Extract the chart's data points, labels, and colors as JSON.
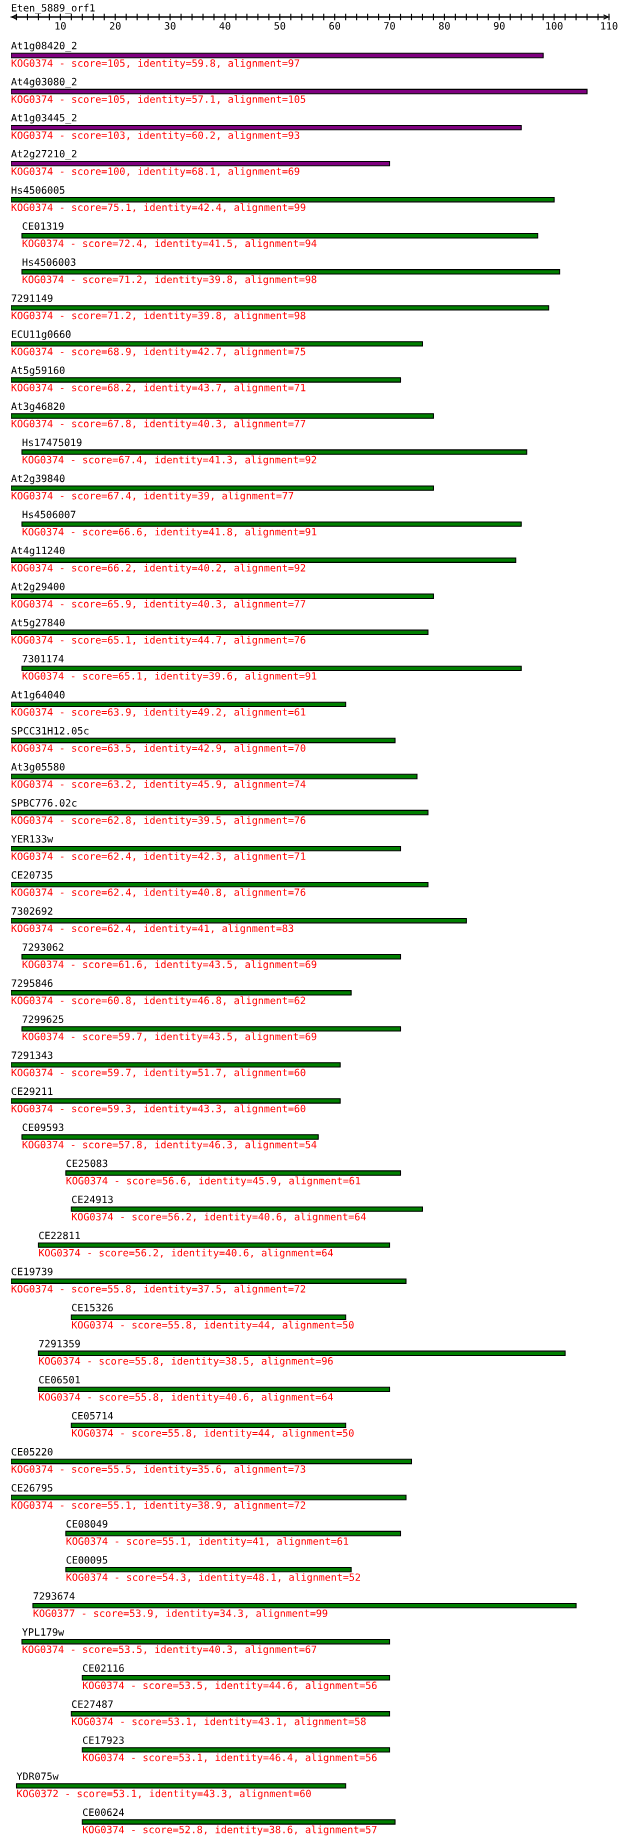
{
  "chart_data": {
    "type": "bar",
    "orientation": "horizontal",
    "title": "Eten_5889_orf1",
    "categories": [
      "At1g08420_2",
      "At4g03080_2",
      "At1g03445_2",
      "At2g27210_2",
      "Hs4506005",
      "CE01319",
      "Hs4506003",
      "7291149",
      "ECU11g0660",
      "At5g59160",
      "At3g46820",
      "Hs17475019",
      "At2g39840",
      "Hs4506007",
      "At4g11240",
      "At2g29400",
      "At5g27840",
      "7301174",
      "At1g64040",
      "SPCC31H12.05c",
      "At3g05580",
      "SPBC776.02c",
      "YER133w",
      "CE20735",
      "7302692",
      "7293062",
      "7295846",
      "7299625",
      "7291343",
      "CE29211",
      "CE09593",
      "CE25083",
      "CE24913",
      "CE22811",
      "CE19739",
      "CE15326",
      "7291359",
      "CE06501",
      "CE05714",
      "CE05220",
      "CE26795",
      "CE08049",
      "CE00095",
      "7293674",
      "YPL179w",
      "CE02116",
      "CE27487",
      "CE17923",
      "YDR075w",
      "CE00624"
    ],
    "base": [
      1,
      1,
      1,
      1,
      1,
      3,
      3,
      1,
      1,
      1,
      1,
      3,
      1,
      3,
      1,
      1,
      1,
      3,
      1,
      1,
      1,
      1,
      1,
      1,
      1,
      3,
      1,
      3,
      1,
      1,
      3,
      11,
      12,
      6,
      1,
      12,
      6,
      6,
      12,
      1,
      1,
      11,
      11,
      5,
      3,
      14,
      12,
      14,
      2,
      14
    ],
    "values": [
      97,
      105,
      93,
      69,
      99,
      94,
      98,
      98,
      75,
      71,
      77,
      92,
      77,
      91,
      92,
      77,
      76,
      91,
      61,
      70,
      74,
      76,
      71,
      76,
      83,
      69,
      62,
      69,
      60,
      60,
      54,
      61,
      64,
      64,
      72,
      50,
      96,
      64,
      50,
      73,
      72,
      61,
      52,
      99,
      67,
      56,
      58,
      56,
      60,
      57
    ],
    "colors": [
      "#800080",
      "#800080",
      "#800080",
      "#800080",
      "#008000",
      "#008000",
      "#008000",
      "#008000",
      "#008000",
      "#008000",
      "#008000",
      "#008000",
      "#008000",
      "#008000",
      "#008000",
      "#008000",
      "#008000",
      "#008000",
      "#008000",
      "#008000",
      "#008000",
      "#008000",
      "#008000",
      "#008000",
      "#008000",
      "#008000",
      "#008000",
      "#008000",
      "#008000",
      "#008000",
      "#008000",
      "#008000",
      "#008000",
      "#008000",
      "#008000",
      "#008000",
      "#008000",
      "#008000",
      "#008000",
      "#008000",
      "#008000",
      "#008000",
      "#008000",
      "#008000",
      "#008000",
      "#008000",
      "#008000",
      "#008000",
      "#008000",
      "#008000"
    ],
    "value_labels": [
      "KOG0374 - score=105, identity=59.8, alignment=97",
      "KOG0374 - score=105, identity=57.1, alignment=105",
      "KOG0374 - score=103, identity=60.2, alignment=93",
      "KOG0374 - score=100, identity=68.1, alignment=69",
      "KOG0374 - score=75.1, identity=42.4, alignment=99",
      "KOG0374 - score=72.4, identity=41.5, alignment=94",
      "KOG0374 - score=71.2, identity=39.8, alignment=98",
      "KOG0374 - score=71.2, identity=39.8, alignment=98",
      "KOG0374 - score=68.9, identity=42.7, alignment=75",
      "KOG0374 - score=68.2, identity=43.7, alignment=71",
      "KOG0374 - score=67.8, identity=40.3, alignment=77",
      "KOG0374 - score=67.4, identity=41.3, alignment=92",
      "KOG0374 - score=67.4, identity=39, alignment=77",
      "KOG0374 - score=66.6, identity=41.8, alignment=91",
      "KOG0374 - score=66.2, identity=40.2, alignment=92",
      "KOG0374 - score=65.9, identity=40.3, alignment=77",
      "KOG0374 - score=65.1, identity=44.7, alignment=76",
      "KOG0374 - score=65.1, identity=39.6, alignment=91",
      "KOG0374 - score=63.9, identity=49.2, alignment=61",
      "KOG0374 - score=63.5, identity=42.9, alignment=70",
      "KOG0374 - score=63.2, identity=45.9, alignment=74",
      "KOG0374 - score=62.8, identity=39.5, alignment=76",
      "KOG0374 - score=62.4, identity=42.3, alignment=71",
      "KOG0374 - score=62.4, identity=40.8, alignment=76",
      "KOG0374 - score=62.4, identity=41, alignment=83",
      "KOG0374 - score=61.6, identity=43.5, alignment=69",
      "KOG0374 - score=60.8, identity=46.8, alignment=62",
      "KOG0374 - score=59.7, identity=43.5, alignment=69",
      "KOG0374 - score=59.7, identity=51.7, alignment=60",
      "KOG0374 - score=59.3, identity=43.3, alignment=60",
      "KOG0374 - score=57.8, identity=46.3, alignment=54",
      "KOG0374 - score=56.6, identity=45.9, alignment=61",
      "KOG0374 - score=56.2, identity=40.6, alignment=64",
      "KOG0374 - score=56.2, identity=40.6, alignment=64",
      "KOG0374 - score=55.8, identity=37.5, alignment=72",
      "KOG0374 - score=55.8, identity=44, alignment=50",
      "KOG0374 - score=55.8, identity=38.5, alignment=96",
      "KOG0374 - score=55.8, identity=40.6, alignment=64",
      "KOG0374 - score=55.8, identity=44, alignment=50",
      "KOG0374 - score=55.5, identity=35.6, alignment=73",
      "KOG0374 - score=55.1, identity=38.9, alignment=72",
      "KOG0374 - score=55.1, identity=41, alignment=61",
      "KOG0374 - score=54.3, identity=48.1, alignment=52",
      "KOG0377 - score=53.9, identity=34.3, alignment=99",
      "KOG0374 - score=53.5, identity=40.3, alignment=67",
      "KOG0374 - score=53.5, identity=44.6, alignment=56",
      "KOG0374 - score=53.1, identity=43.1, alignment=58",
      "KOG0374 - score=53.1, identity=46.4, alignment=56",
      "KOG0372 - score=53.1, identity=43.3, alignment=60",
      "KOG0374 - score=52.8, identity=38.6, alignment=57"
    ],
    "xlim": [
      1,
      110
    ],
    "xticks": [
      {
        "value": 2,
        "label": null
      },
      {
        "value": 4,
        "label": null
      },
      {
        "value": 6,
        "label": null
      },
      {
        "value": 8,
        "label": null
      },
      10,
      {
        "value": 12,
        "label": null
      },
      {
        "value": 14,
        "label": null
      },
      {
        "value": 16,
        "label": null
      },
      {
        "value": 18,
        "label": null
      },
      20,
      {
        "value": 22,
        "label": null
      },
      {
        "value": 24,
        "label": null
      },
      {
        "value": 26,
        "label": null
      },
      {
        "value": 28,
        "label": null
      },
      30,
      {
        "value": 32,
        "label": null
      },
      {
        "value": 34,
        "label": null
      },
      {
        "value": 36,
        "label": null
      },
      {
        "value": 38,
        "label": null
      },
      40,
      {
        "value": 42,
        "label": null
      },
      {
        "value": 44,
        "label": null
      },
      {
        "value": 46,
        "label": null
      },
      {
        "value": 48,
        "label": null
      },
      50,
      {
        "value": 52,
        "label": null
      },
      {
        "value": 54,
        "label": null
      },
      {
        "value": 56,
        "label": null
      },
      {
        "value": 58,
        "label": null
      },
      60,
      {
        "value": 62,
        "label": null
      },
      {
        "value": 64,
        "label": null
      },
      {
        "value": 66,
        "label": null
      },
      {
        "value": 68,
        "label": null
      },
      70,
      {
        "value": 72,
        "label": null
      },
      {
        "value": 74,
        "label": null
      },
      {
        "value": 76,
        "label": null
      },
      {
        "value": 78,
        "label": null
      },
      80,
      {
        "value": 82,
        "label": null
      },
      {
        "value": 84,
        "label": null
      },
      {
        "value": 86,
        "label": null
      },
      {
        "value": 88,
        "label": null
      },
      90,
      {
        "value": 92,
        "label": null
      },
      {
        "value": 94,
        "label": null
      },
      {
        "value": 96,
        "label": null
      },
      {
        "value": 98,
        "label": null
      },
      100,
      {
        "value": 102,
        "label": null
      },
      {
        "value": 104,
        "label": null
      },
      {
        "value": 106,
        "label": null
      },
      {
        "value": 108,
        "label": null
      },
      110
    ]
  }
}
